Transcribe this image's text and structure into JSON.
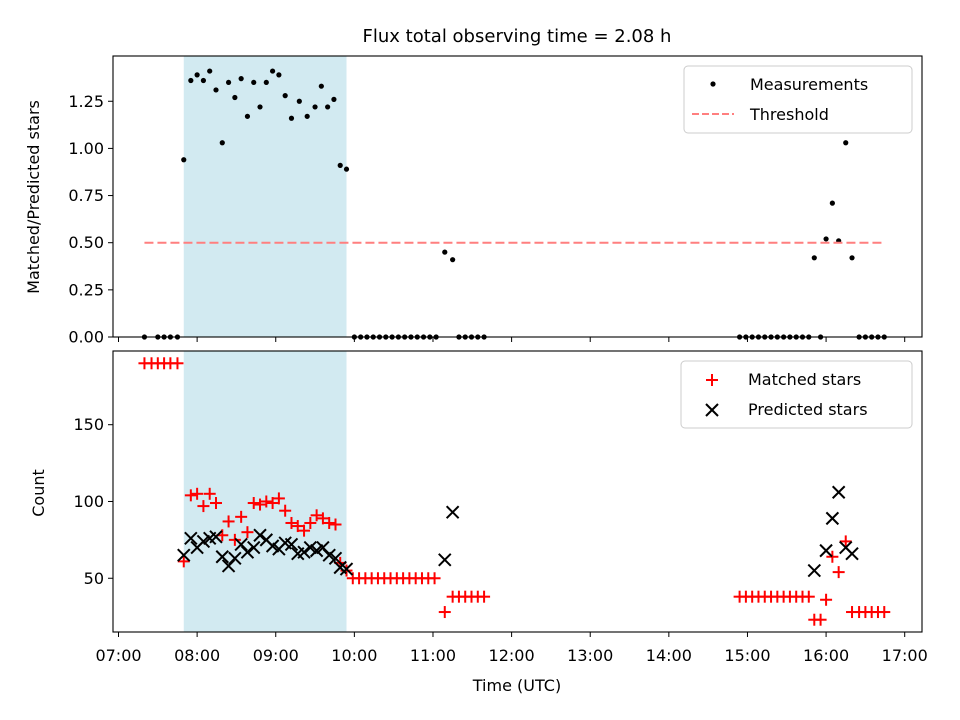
{
  "chart_data": [
    {
      "type": "scatter",
      "title": "Flux total observing time = 2.08 h",
      "ylabel": "Matched/Predicted stars",
      "xlabel": "",
      "xlim": [
        6.93,
        17.22
      ],
      "ylim": [
        0.0,
        1.49
      ],
      "yticks": [
        0.0,
        0.25,
        0.5,
        0.75,
        1.0,
        1.25
      ],
      "ytick_labels": [
        "0.00",
        "0.25",
        "0.50",
        "0.75",
        "1.00",
        "1.25"
      ],
      "legend_position": "top-right",
      "shaded_interval": [
        7.83,
        9.9
      ],
      "shade_color": "#add8e6",
      "series": [
        {
          "name": "Measurements",
          "marker": "dot",
          "color": "#000000",
          "x": [
            7.33,
            7.5,
            7.58,
            7.66,
            7.75,
            7.83,
            7.92,
            8.0,
            8.08,
            8.16,
            8.24,
            8.32,
            8.4,
            8.48,
            8.56,
            8.64,
            8.72,
            8.8,
            8.88,
            8.96,
            9.04,
            9.12,
            9.2,
            9.3,
            9.4,
            9.5,
            9.58,
            9.66,
            9.74,
            9.82,
            9.9,
            10.0,
            10.08,
            10.16,
            10.24,
            10.32,
            10.4,
            10.48,
            10.56,
            10.64,
            10.72,
            10.8,
            10.88,
            10.96,
            11.04,
            11.15,
            11.25,
            11.33,
            11.41,
            11.49,
            11.57,
            11.65,
            14.9,
            14.98,
            15.06,
            15.14,
            15.22,
            15.3,
            15.38,
            15.46,
            15.54,
            15.62,
            15.7,
            15.78,
            15.85,
            15.93,
            16.0,
            16.08,
            16.16,
            16.25,
            16.33,
            16.42,
            16.5,
            16.58,
            16.66,
            16.74
          ],
          "y": [
            0.0,
            0.0,
            0.0,
            0.0,
            0.0,
            0.94,
            1.36,
            1.39,
            1.36,
            1.41,
            1.31,
            1.03,
            1.35,
            1.27,
            1.37,
            1.17,
            1.35,
            1.22,
            1.35,
            1.41,
            1.39,
            1.28,
            1.16,
            1.25,
            1.17,
            1.22,
            1.33,
            1.22,
            1.26,
            0.91,
            0.89,
            0.0,
            0.0,
            0.0,
            0.0,
            0.0,
            0.0,
            0.0,
            0.0,
            0.0,
            0.0,
            0.0,
            0.0,
            0.0,
            0.0,
            0.45,
            0.41,
            0.0,
            0.0,
            0.0,
            0.0,
            0.0,
            0.0,
            0.0,
            0.0,
            0.0,
            0.0,
            0.0,
            0.0,
            0.0,
            0.0,
            0.0,
            0.0,
            0.0,
            0.42,
            0.0,
            0.52,
            0.71,
            0.51,
            1.03,
            0.42,
            0.0,
            0.0,
            0.0,
            0.0,
            0.0
          ]
        },
        {
          "name": "Threshold",
          "marker": "dashed-line",
          "color": "#ff7f7f",
          "x": [
            7.33,
            16.75
          ],
          "y": [
            0.5,
            0.5
          ]
        }
      ]
    },
    {
      "type": "scatter",
      "title": "",
      "ylabel": "Count",
      "xlabel": "Time (UTC)",
      "xlim": [
        6.93,
        17.22
      ],
      "ylim": [
        15,
        198
      ],
      "yticks": [
        50,
        100,
        150
      ],
      "ytick_labels": [
        "50",
        "100",
        "150"
      ],
      "xticks": [
        7,
        8,
        9,
        10,
        11,
        12,
        13,
        14,
        15,
        16,
        17
      ],
      "xtick_labels": [
        "07:00",
        "08:00",
        "09:00",
        "10:00",
        "11:00",
        "12:00",
        "13:00",
        "14:00",
        "15:00",
        "16:00",
        "17:00"
      ],
      "legend_position": "top-right",
      "shaded_interval": [
        7.83,
        9.9
      ],
      "shade_color": "#add8e6",
      "series": [
        {
          "name": "Matched stars",
          "marker": "plus",
          "color": "#ff0000",
          "x": [
            7.33,
            7.42,
            7.5,
            7.58,
            7.66,
            7.75,
            7.83,
            7.92,
            8.0,
            8.08,
            8.16,
            8.24,
            8.32,
            8.4,
            8.48,
            8.56,
            8.64,
            8.72,
            8.8,
            8.88,
            8.96,
            9.04,
            9.12,
            9.2,
            9.28,
            9.36,
            9.44,
            9.52,
            9.6,
            9.68,
            9.76,
            9.82,
            9.9,
            9.98,
            10.06,
            10.14,
            10.22,
            10.3,
            10.38,
            10.46,
            10.54,
            10.62,
            10.7,
            10.78,
            10.86,
            10.94,
            11.02,
            11.15,
            11.25,
            11.33,
            11.41,
            11.49,
            11.57,
            11.65,
            14.9,
            14.98,
            15.06,
            15.14,
            15.22,
            15.3,
            15.38,
            15.46,
            15.54,
            15.62,
            15.7,
            15.78,
            15.85,
            15.93,
            16.0,
            16.08,
            16.16,
            16.25,
            16.33,
            16.42,
            16.5,
            16.58,
            16.66,
            16.74
          ],
          "y": [
            190,
            190,
            190,
            190,
            190,
            190,
            61,
            104,
            105,
            97,
            105,
            99,
            78,
            87,
            75,
            90,
            80,
            99,
            98,
            100,
            99,
            102,
            94,
            86,
            84,
            81,
            86,
            91,
            89,
            86,
            85,
            60,
            55,
            50,
            50,
            50,
            50,
            50,
            50,
            50,
            50,
            50,
            50,
            50,
            50,
            50,
            50,
            28,
            38,
            38,
            38,
            38,
            38,
            38,
            38,
            38,
            38,
            38,
            38,
            38,
            38,
            38,
            38,
            38,
            38,
            38,
            23,
            23,
            36,
            64,
            54,
            74,
            28,
            28,
            28,
            28,
            28,
            28
          ]
        },
        {
          "name": "Predicted stars",
          "marker": "x",
          "color": "#000000",
          "x": [
            7.83,
            7.92,
            8.0,
            8.08,
            8.16,
            8.24,
            8.32,
            8.4,
            8.48,
            8.56,
            8.64,
            8.72,
            8.8,
            8.88,
            8.96,
            9.04,
            9.12,
            9.2,
            9.28,
            9.36,
            9.44,
            9.52,
            9.6,
            9.68,
            9.76,
            9.82,
            9.9,
            11.15,
            11.25,
            15.85,
            16.0,
            16.08,
            16.16,
            16.25,
            16.33
          ],
          "y": [
            65,
            76,
            70,
            74,
            76,
            77,
            64,
            58,
            63,
            72,
            67,
            70,
            78,
            75,
            71,
            69,
            73,
            72,
            66,
            67,
            70,
            68,
            70,
            65,
            63,
            57,
            56,
            62,
            93,
            55,
            68,
            89,
            106,
            70,
            66
          ]
        }
      ]
    }
  ]
}
